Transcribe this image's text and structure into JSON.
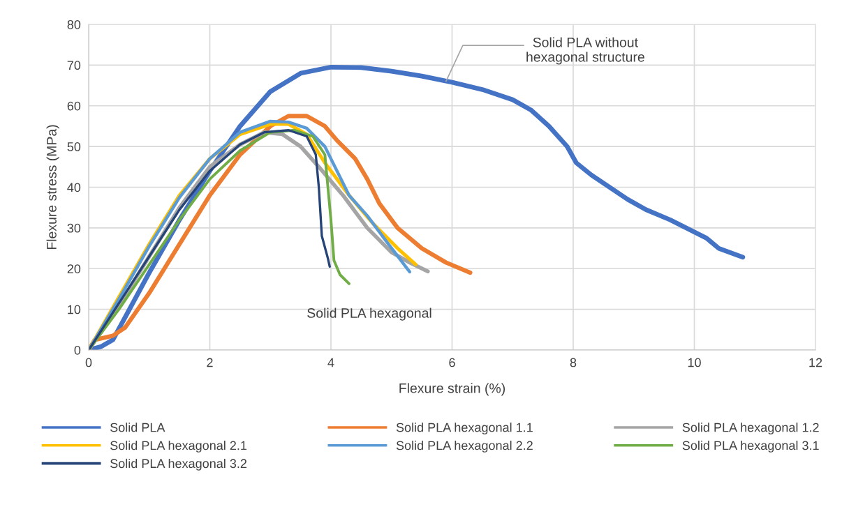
{
  "chart_data": {
    "type": "line",
    "xlabel": "Flexure strain (%)",
    "ylabel": "Flexure stress (MPa)",
    "xlim": [
      0,
      12
    ],
    "xticks": [
      0,
      2,
      4,
      6,
      8,
      10,
      12
    ],
    "ylim": [
      0,
      80
    ],
    "yticks": [
      0,
      10,
      20,
      30,
      40,
      50,
      60,
      70,
      80
    ],
    "grid": true,
    "legend": "bottom",
    "marker": "none",
    "line_style": "solid",
    "annotations": [
      {
        "text": "Solid PLA without\nhexagonal structure",
        "x": 5.9,
        "y": 66
      },
      "Solid PLA hexagonal"
    ],
    "series": [
      {
        "name": "Solid PLA",
        "color": "#4472c4",
        "x": [
          0,
          0.2,
          0.4,
          0.6,
          1,
          1.5,
          2,
          2.5,
          3,
          3.5,
          4,
          4.5,
          5,
          5.5,
          6,
          6.5,
          7,
          7.3,
          7.6,
          7.9,
          8.05,
          8.3,
          8.6,
          8.9,
          9.2,
          9.6,
          10,
          10.2,
          10.4,
          10.8
        ],
        "values": [
          0,
          0.8,
          2.5,
          8,
          19,
          32,
          44,
          55,
          63.5,
          68,
          69.5,
          69.4,
          68.5,
          67.3,
          65.8,
          64,
          61.5,
          59,
          55,
          50,
          46,
          43,
          40,
          37,
          34.5,
          32,
          29,
          27.5,
          25,
          22.8
        ]
      },
      {
        "name": "Solid PLA hexagonal 1.1",
        "color": "#ed7d31",
        "x": [
          0,
          0.1,
          0.4,
          0.6,
          1,
          1.5,
          2,
          2.5,
          3,
          3.3,
          3.6,
          3.9,
          4.1,
          4.4,
          4.6,
          4.8,
          5.1,
          5.5,
          5.9,
          6.3
        ],
        "values": [
          0,
          2.5,
          3.5,
          5.5,
          14,
          26,
          38,
          48,
          55,
          57.5,
          57.5,
          55,
          51.5,
          47,
          42,
          36,
          30,
          25,
          21.5,
          19
        ]
      },
      {
        "name": "Solid PLA hexagonal 1.2",
        "color": "#a5a5a5",
        "x": [
          0,
          0.5,
          1,
          1.5,
          2,
          2.5,
          2.9,
          3.2,
          3.5,
          3.8,
          4.2,
          4.6,
          5,
          5.3,
          5.6
        ],
        "values": [
          0,
          11,
          23,
          35,
          45,
          50.5,
          53.5,
          53,
          50,
          45,
          38,
          30,
          24,
          21.5,
          19.3
        ]
      },
      {
        "name": "Solid PLA hexagonal 2.1",
        "color": "#ffc000",
        "x": [
          0,
          0.5,
          1,
          1.5,
          2,
          2.5,
          3,
          3.3,
          3.6,
          3.9,
          4.3,
          4.7,
          5.1,
          5.4
        ],
        "values": [
          0,
          13,
          26,
          38,
          47,
          53,
          55.5,
          55.5,
          53,
          46,
          38,
          31,
          25,
          21
        ]
      },
      {
        "name": "Solid PLA hexagonal 2.2",
        "color": "#5b9bd5",
        "x": [
          0,
          0.5,
          1,
          1.5,
          2,
          2.5,
          3,
          3.3,
          3.6,
          3.9,
          4.1,
          4.3,
          4.6,
          4.9,
          5.3
        ],
        "values": [
          0,
          12.5,
          25.5,
          37.5,
          47,
          53.5,
          56.2,
          56,
          54.5,
          50,
          44,
          38,
          33,
          27,
          19.2
        ]
      },
      {
        "name": "Solid PLA hexagonal 3.1",
        "color": "#70ad47",
        "x": [
          0,
          0.5,
          1,
          1.5,
          2,
          2.5,
          3,
          3.4,
          3.7,
          3.9,
          3.95,
          4.0,
          4.05,
          4.15,
          4.3
        ],
        "values": [
          0,
          10,
          21,
          32,
          42,
          49,
          53.5,
          54,
          52.5,
          48,
          40,
          32,
          22,
          18.5,
          16.3
        ]
      },
      {
        "name": "Solid PLA hexagonal 3.2",
        "color": "#264478",
        "x": [
          0,
          0.5,
          1,
          1.5,
          2,
          2.5,
          2.9,
          3.3,
          3.6,
          3.75,
          3.8,
          3.85,
          3.95,
          3.98
        ],
        "values": [
          0,
          11.5,
          23,
          34.5,
          44,
          50.5,
          53.5,
          54,
          52.5,
          48,
          40,
          28,
          22.5,
          20.5
        ]
      }
    ]
  }
}
